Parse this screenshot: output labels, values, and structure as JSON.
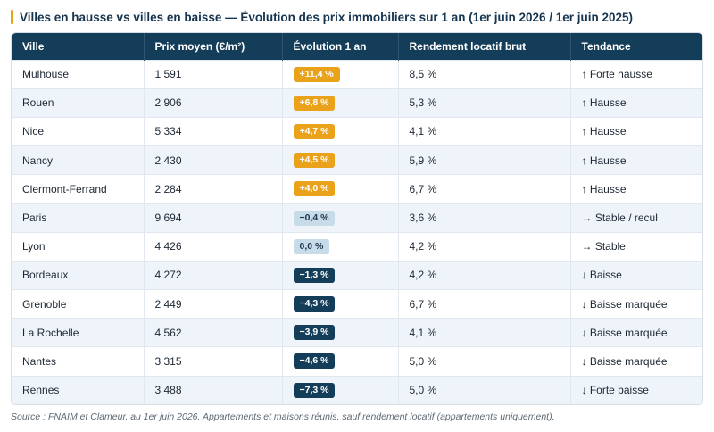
{
  "title": "Villes en hausse vs villes en baisse — Évolution des prix immobiliers sur 1 an (1er juin 2026 / 1er juin 2025)",
  "colors": {
    "accent": "#e8a317",
    "header_bg": "#143d59",
    "up": "#eba21b",
    "flat": "#c8dbe9",
    "down": "#143d59"
  },
  "table": {
    "headers": [
      "Ville",
      "Prix moyen (€/m²)",
      "Évolution 1 an",
      "Rendement locatif brut",
      "Tendance"
    ],
    "rows": [
      {
        "ville": "Mulhouse",
        "prix": "1 591",
        "evolution": "+11,4 %",
        "kind": "up",
        "rendement": "8,5 %",
        "tendance": "↑ Forte hausse"
      },
      {
        "ville": "Rouen",
        "prix": "2 906",
        "evolution": "+6,8 %",
        "kind": "up",
        "rendement": "5,3 %",
        "tendance": "↑ Hausse"
      },
      {
        "ville": "Nice",
        "prix": "5 334",
        "evolution": "+4,7 %",
        "kind": "up",
        "rendement": "4,1 %",
        "tendance": "↑ Hausse"
      },
      {
        "ville": "Nancy",
        "prix": "2 430",
        "evolution": "+4,5 %",
        "kind": "up",
        "rendement": "5,9 %",
        "tendance": "↑ Hausse"
      },
      {
        "ville": "Clermont-Ferrand",
        "prix": "2 284",
        "evolution": "+4,0 %",
        "kind": "up",
        "rendement": "6,7 %",
        "tendance": "↑ Hausse"
      },
      {
        "ville": "Paris",
        "prix": "9 694",
        "evolution": "−0,4 %",
        "kind": "flat",
        "rendement": "3,6 %",
        "tendance": "→ Stable / recul"
      },
      {
        "ville": "Lyon",
        "prix": "4 426",
        "evolution": "0,0 %",
        "kind": "flat",
        "rendement": "4,2 %",
        "tendance": "→ Stable"
      },
      {
        "ville": "Bordeaux",
        "prix": "4 272",
        "evolution": "−1,3 %",
        "kind": "down",
        "rendement": "4,2 %",
        "tendance": "↓ Baisse"
      },
      {
        "ville": "Grenoble",
        "prix": "2 449",
        "evolution": "−4,3 %",
        "kind": "down",
        "rendement": "6,7 %",
        "tendance": "↓ Baisse marquée"
      },
      {
        "ville": "La Rochelle",
        "prix": "4 562",
        "evolution": "−3,9 %",
        "kind": "down",
        "rendement": "4,1 %",
        "tendance": "↓ Baisse marquée"
      },
      {
        "ville": "Nantes",
        "prix": "3 315",
        "evolution": "−4,6 %",
        "kind": "down",
        "rendement": "5,0 %",
        "tendance": "↓ Baisse marquée"
      },
      {
        "ville": "Rennes",
        "prix": "3 488",
        "evolution": "−7,3 %",
        "kind": "down",
        "rendement": "5,0 %",
        "tendance": "↓ Forte baisse"
      }
    ]
  },
  "source": "Source : FNAIM et Clameur, au 1er juin 2026. Appartements et maisons réunis, sauf rendement locatif (appartements uniquement)."
}
